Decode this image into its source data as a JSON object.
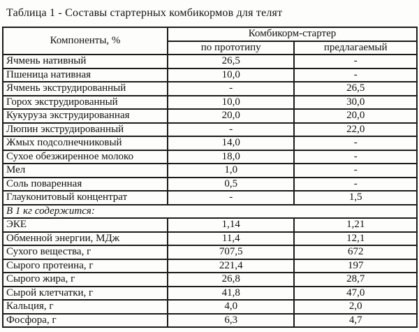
{
  "title": "Таблица 1 - Составы стартерных комбикормов для телят",
  "table": {
    "col1_header": "Компоненты, %",
    "group_header": "Комбикорм-стартер",
    "sub_headers": [
      "по прототипу",
      "предлагаемый"
    ],
    "rows": [
      {
        "label": "Ячмень нативный",
        "prototype": "26,5",
        "proposed": "-"
      },
      {
        "label": "Пшеница нативная",
        "prototype": "10,0",
        "proposed": "-"
      },
      {
        "label": "Ячмень экструдированный",
        "prototype": "-",
        "proposed": "26,5"
      },
      {
        "label": "Горох экструдированный",
        "prototype": "10,0",
        "proposed": "30,0"
      },
      {
        "label": "Кукуруза экструдированная",
        "prototype": "20,0",
        "proposed": "20,0"
      },
      {
        "label": "Люпин экструдированный",
        "prototype": "-",
        "proposed": "22,0"
      },
      {
        "label": "Жмых подсолнечниковый",
        "prototype": "14,0",
        "proposed": "-"
      },
      {
        "label": "Сухое обезжиренное молоко",
        "prototype": "18,0",
        "proposed": "-"
      },
      {
        "label": "Мел",
        "prototype": "1,0",
        "proposed": "-"
      },
      {
        "label": "Соль поваренная",
        "prototype": "0,5",
        "proposed": "-"
      },
      {
        "label": "Глауконитовый концентрат",
        "prototype": "-",
        "proposed": "1,5"
      },
      {
        "label": "В 1 кг содержится:",
        "section": true
      },
      {
        "label": "ЭКЕ",
        "prototype": "1,14",
        "proposed": "1,21"
      },
      {
        "label": "Обменной энергии, МДж",
        "prototype": "11,4",
        "proposed": "12,1"
      },
      {
        "label": "Сухого вещества, г",
        "prototype": "707,5",
        "proposed": "672"
      },
      {
        "label": "Сырого протеина, г",
        "prototype": "221,4",
        "proposed": "197"
      },
      {
        "label": "Сырого жира, г",
        "prototype": "26,8",
        "proposed": "28,7"
      },
      {
        "label": "Сырой клетчатки, г",
        "prototype": "41,8",
        "proposed": "47,0"
      },
      {
        "label": "Кальция, г",
        "prototype": "4,0",
        "proposed": "2,0"
      },
      {
        "label": "Фосфора, г",
        "prototype": "6,3",
        "proposed": "4,7"
      }
    ]
  }
}
